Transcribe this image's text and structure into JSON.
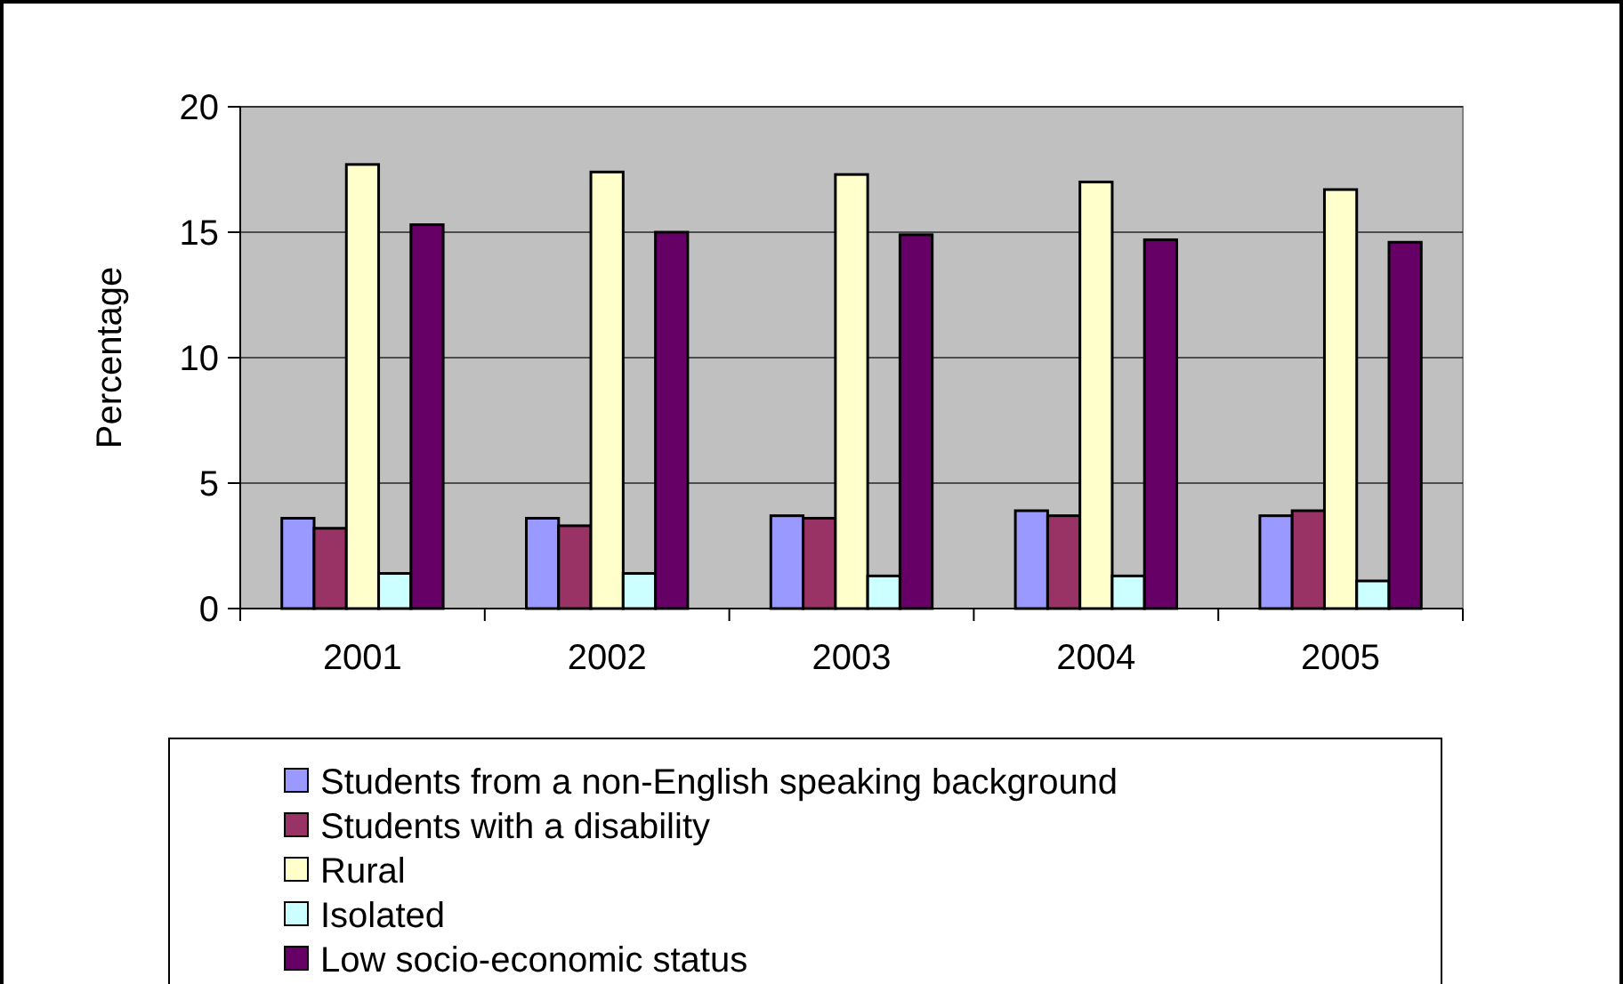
{
  "chart_data": {
    "type": "bar",
    "ylabel": "Percentage",
    "categories": [
      "2001",
      "2002",
      "2003",
      "2004",
      "2005"
    ],
    "series": [
      {
        "name": "Students from a non-English speaking background",
        "color": "#9999ff",
        "values": [
          3.6,
          3.6,
          3.7,
          3.9,
          3.7
        ]
      },
      {
        "name": "Students with a disability",
        "color": "#993366",
        "values": [
          3.2,
          3.3,
          3.6,
          3.7,
          3.9
        ]
      },
      {
        "name": "Rural",
        "color": "#ffffcc",
        "values": [
          17.7,
          17.4,
          17.3,
          17.0,
          16.7
        ]
      },
      {
        "name": "Isolated",
        "color": "#ccffff",
        "values": [
          1.4,
          1.4,
          1.3,
          1.3,
          1.1
        ]
      },
      {
        "name": "Low socio-economic status",
        "color": "#660066",
        "values": [
          15.3,
          15.0,
          14.9,
          14.7,
          14.6
        ]
      }
    ],
    "ylim": [
      0,
      20
    ],
    "yticks": [
      0,
      5,
      10,
      15,
      20
    ],
    "grid": "y",
    "legend": "bottom"
  }
}
